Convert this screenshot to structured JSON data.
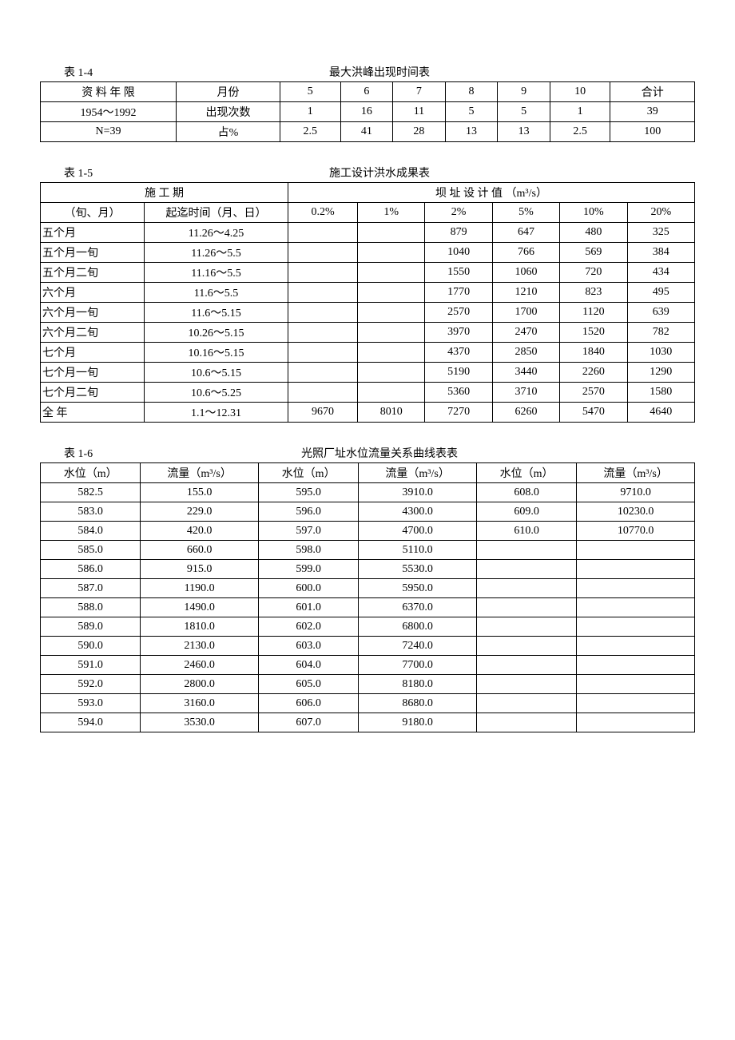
{
  "table1": {
    "label": "表 1-4",
    "title": "最大洪峰出现时间表",
    "row1_col1": "资 料 年 限",
    "row1_col2": "月份",
    "months": [
      "5",
      "6",
      "7",
      "8",
      "9",
      "10"
    ],
    "total_label": "合计",
    "row2_col1": "1954～1992",
    "row2_col2": "出现次数",
    "row2_vals": [
      "1",
      "16",
      "11",
      "5",
      "5",
      "1",
      "39"
    ],
    "row3_col1": "N=39",
    "row3_col2": "占%",
    "row3_vals": [
      "2.5",
      "41",
      "28",
      "13",
      "13",
      "2.5",
      "100"
    ]
  },
  "table2": {
    "label": "表 1-5",
    "title": "施工设计洪水成果表",
    "header_left": "施   工   期",
    "header_right": "坝   址   设   计   值    （m³/s）",
    "sub_col1": "（旬、月）",
    "sub_col2": "起迄时间（月、日）",
    "percents": [
      "0.2%",
      "1%",
      "2%",
      "5%",
      "10%",
      "20%"
    ],
    "rows": [
      {
        "a": "五个月",
        "b": "11.26～4.25",
        "v": [
          "",
          "",
          "879",
          "647",
          "480",
          "325"
        ]
      },
      {
        "a": "五个月一旬",
        "b": "11.26～5.5",
        "v": [
          "",
          "",
          "1040",
          "766",
          "569",
          "384"
        ]
      },
      {
        "a": "五个月二旬",
        "b": "11.16～5.5",
        "v": [
          "",
          "",
          "1550",
          "1060",
          "720",
          "434"
        ]
      },
      {
        "a": "六个月",
        "b": "11.6～5.5",
        "v": [
          "",
          "",
          "1770",
          "1210",
          "823",
          "495"
        ]
      },
      {
        "a": "六个月一旬",
        "b": "11.6～5.15",
        "v": [
          "",
          "",
          "2570",
          "1700",
          "1120",
          "639"
        ]
      },
      {
        "a": "六个月二旬",
        "b": "10.26～5.15",
        "v": [
          "",
          "",
          "3970",
          "2470",
          "1520",
          "782"
        ]
      },
      {
        "a": "七个月",
        "b": "10.16～5.15",
        "v": [
          "",
          "",
          "4370",
          "2850",
          "1840",
          "1030"
        ]
      },
      {
        "a": "七个月一旬",
        "b": "10.6～5.15",
        "v": [
          "",
          "",
          "5190",
          "3440",
          "2260",
          "1290"
        ]
      },
      {
        "a": "七个月二旬",
        "b": "10.6～5.25",
        "v": [
          "",
          "",
          "5360",
          "3710",
          "2570",
          "1580"
        ]
      },
      {
        "a": "全  年",
        "b": "1.1～12.31",
        "v": [
          "9670",
          "8010",
          "7270",
          "6260",
          "5470",
          "4640"
        ]
      }
    ]
  },
  "table3": {
    "label": "表 1-6",
    "title": "光照厂址水位流量关系曲线表表",
    "h_level": "水位（m）",
    "h_flow": "流量（m³/s）",
    "rows": [
      [
        "582.5",
        "155.0",
        "595.0",
        "3910.0",
        "608.0",
        "9710.0"
      ],
      [
        "583.0",
        "229.0",
        "596.0",
        "4300.0",
        "609.0",
        "10230.0"
      ],
      [
        "584.0",
        "420.0",
        "597.0",
        "4700.0",
        "610.0",
        "10770.0"
      ],
      [
        "585.0",
        "660.0",
        "598.0",
        "5110.0",
        "",
        ""
      ],
      [
        "586.0",
        "915.0",
        "599.0",
        "5530.0",
        "",
        ""
      ],
      [
        "587.0",
        "1190.0",
        "600.0",
        "5950.0",
        "",
        ""
      ],
      [
        "588.0",
        "1490.0",
        "601.0",
        "6370.0",
        "",
        ""
      ],
      [
        "589.0",
        "1810.0",
        "602.0",
        "6800.0",
        "",
        ""
      ],
      [
        "590.0",
        "2130.0",
        "603.0",
        "7240.0",
        "",
        ""
      ],
      [
        "591.0",
        "2460.0",
        "604.0",
        "7700.0",
        "",
        ""
      ],
      [
        "592.0",
        "2800.0",
        "605.0",
        "8180.0",
        "",
        ""
      ],
      [
        "593.0",
        "3160.0",
        "606.0",
        "8680.0",
        "",
        ""
      ],
      [
        "594.0",
        "3530.0",
        "607.0",
        "9180.0",
        "",
        ""
      ]
    ]
  }
}
